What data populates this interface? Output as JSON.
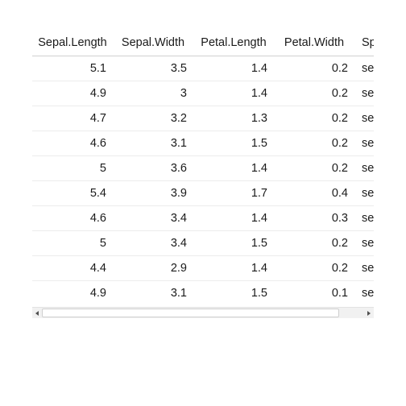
{
  "table": {
    "columns": [
      "Sepal.Length",
      "Sepal.Width",
      "Petal.Length",
      "Petal.Width",
      "Sp"
    ],
    "rows": [
      [
        "5.1",
        "3.5",
        "1.4",
        "0.2",
        "se"
      ],
      [
        "4.9",
        "3",
        "1.4",
        "0.2",
        "se"
      ],
      [
        "4.7",
        "3.2",
        "1.3",
        "0.2",
        "se"
      ],
      [
        "4.6",
        "3.1",
        "1.5",
        "0.2",
        "se"
      ],
      [
        "5",
        "3.6",
        "1.4",
        "0.2",
        "se"
      ],
      [
        "5.4",
        "3.9",
        "1.7",
        "0.4",
        "se"
      ],
      [
        "4.6",
        "3.4",
        "1.4",
        "0.3",
        "se"
      ],
      [
        "5",
        "3.4",
        "1.5",
        "0.2",
        "se"
      ],
      [
        "4.4",
        "2.9",
        "1.4",
        "0.2",
        "se"
      ],
      [
        "4.9",
        "3.1",
        "1.5",
        "0.1",
        "se"
      ]
    ]
  },
  "scrollbar": {
    "left_icon": "scroll-left-arrow-icon",
    "right_icon": "scroll-right-arrow-icon"
  }
}
